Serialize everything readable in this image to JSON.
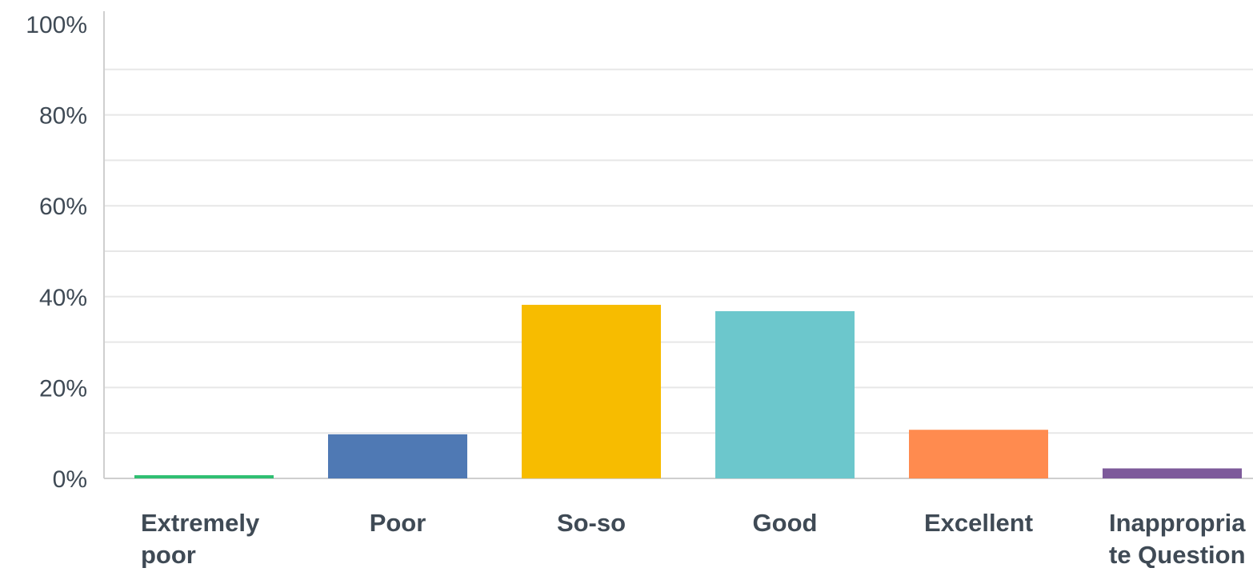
{
  "chart_data": {
    "type": "bar",
    "categories": [
      "Extremely poor",
      "Poor",
      "So-so",
      "Good",
      "Excellent",
      "Inappropriate Question"
    ],
    "category_label_lines": [
      [
        "Extremely",
        "poor"
      ],
      [
        "Poor"
      ],
      [
        "So-so"
      ],
      [
        "Good"
      ],
      [
        "Excellent"
      ],
      [
        "Inappropria",
        "te Question"
      ]
    ],
    "values": [
      0.7,
      9.7,
      38.2,
      36.8,
      10.7,
      2.2
    ],
    "colors": [
      "#2fbf71",
      "#4f79b4",
      "#f7bc00",
      "#6cc7cc",
      "#ff8b4f",
      "#7d5a9a"
    ],
    "ylim": [
      0,
      100
    ],
    "yticks": [
      0,
      20,
      40,
      60,
      80,
      100
    ],
    "ytick_labels": [
      "0%",
      "20%",
      "40%",
      "60%",
      "80%",
      "100%"
    ],
    "grid": true,
    "grid_color": "#e7e7e7",
    "axis_color": "#cfcfcf",
    "label_color": "#3f4a55"
  }
}
